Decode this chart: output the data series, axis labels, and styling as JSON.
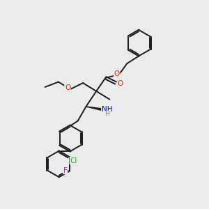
{
  "bg_color": "#ebebeb",
  "line_color": "#1a1a1a",
  "bond_width": 1.4,
  "atom_colors": {
    "O": "#ee2200",
    "N": "#0000cc",
    "Cl": "#22aa22",
    "F": "#cc22cc"
  }
}
